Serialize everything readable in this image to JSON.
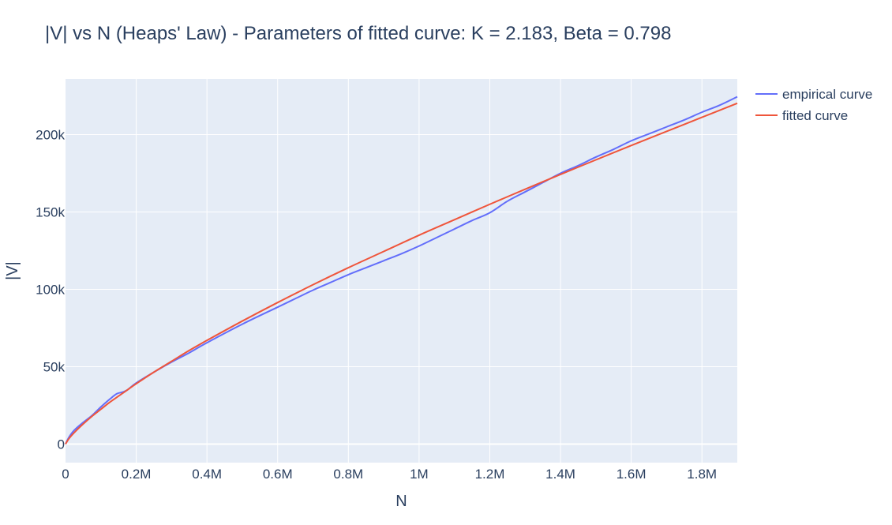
{
  "chart_data": {
    "type": "line",
    "title": "|V| vs N (Heaps' Law) - Parameters of fitted curve: K = 2.183, Beta = 0.798",
    "xlabel": "N",
    "ylabel": "|V|",
    "xlim": [
      0,
      1900000
    ],
    "ylim": [
      -12000,
      236000
    ],
    "x_ticks": [
      0,
      200000,
      400000,
      600000,
      800000,
      1000000,
      1200000,
      1400000,
      1600000,
      1800000
    ],
    "x_tick_labels": [
      "0",
      "0.2M",
      "0.4M",
      "0.6M",
      "0.8M",
      "1M",
      "1.2M",
      "1.4M",
      "1.6M",
      "1.8M"
    ],
    "y_ticks": [
      0,
      50000,
      100000,
      150000,
      200000
    ],
    "y_tick_labels": [
      "0",
      "50k",
      "100k",
      "150k",
      "200k"
    ],
    "grid": true,
    "legend_position": "top-right",
    "plot_bgcolor": "#e5ecf6",
    "series": [
      {
        "name": "empirical curve",
        "color": "#636efa",
        "x": [
          0,
          10000,
          25000,
          50000,
          75000,
          100000,
          125000,
          145000,
          160000,
          175000,
          200000,
          250000,
          300000,
          350000,
          400000,
          500000,
          600000,
          650000,
          700000,
          750000,
          800000,
          850000,
          900000,
          950000,
          1000000,
          1050000,
          1100000,
          1150000,
          1200000,
          1250000,
          1300000,
          1350000,
          1400000,
          1450000,
          1500000,
          1550000,
          1600000,
          1650000,
          1700000,
          1750000,
          1800000,
          1850000,
          1900000
        ],
        "y": [
          0,
          4500,
          9000,
          14000,
          18500,
          24000,
          29000,
          32500,
          33500,
          35000,
          39500,
          46500,
          53000,
          59000,
          65500,
          77500,
          88500,
          94000,
          99500,
          104500,
          109500,
          114000,
          118500,
          123000,
          128000,
          133500,
          139000,
          144500,
          149500,
          157000,
          163000,
          169000,
          175000,
          180000,
          185500,
          190500,
          196000,
          200500,
          205000,
          209500,
          214500,
          219000,
          224500
        ]
      },
      {
        "name": "fitted curve",
        "color": "#ef553b",
        "x": [
          0,
          10000,
          25000,
          50000,
          75000,
          100000,
          125000,
          150000,
          175000,
          200000,
          250000,
          300000,
          350000,
          400000,
          500000,
          600000,
          700000,
          800000,
          900000,
          1000000,
          1100000,
          1200000,
          1300000,
          1400000,
          1500000,
          1600000,
          1700000,
          1800000,
          1900000
        ],
        "y": [
          0,
          3600,
          7500,
          13000,
          18000,
          22500,
          27000,
          31000,
          35000,
          39000,
          46500,
          53500,
          60500,
          67000,
          79500,
          91500,
          103000,
          114000,
          124500,
          135000,
          145000,
          155000,
          164700,
          174300,
          183700,
          193000,
          202100,
          211200,
          220300
        ]
      }
    ]
  }
}
